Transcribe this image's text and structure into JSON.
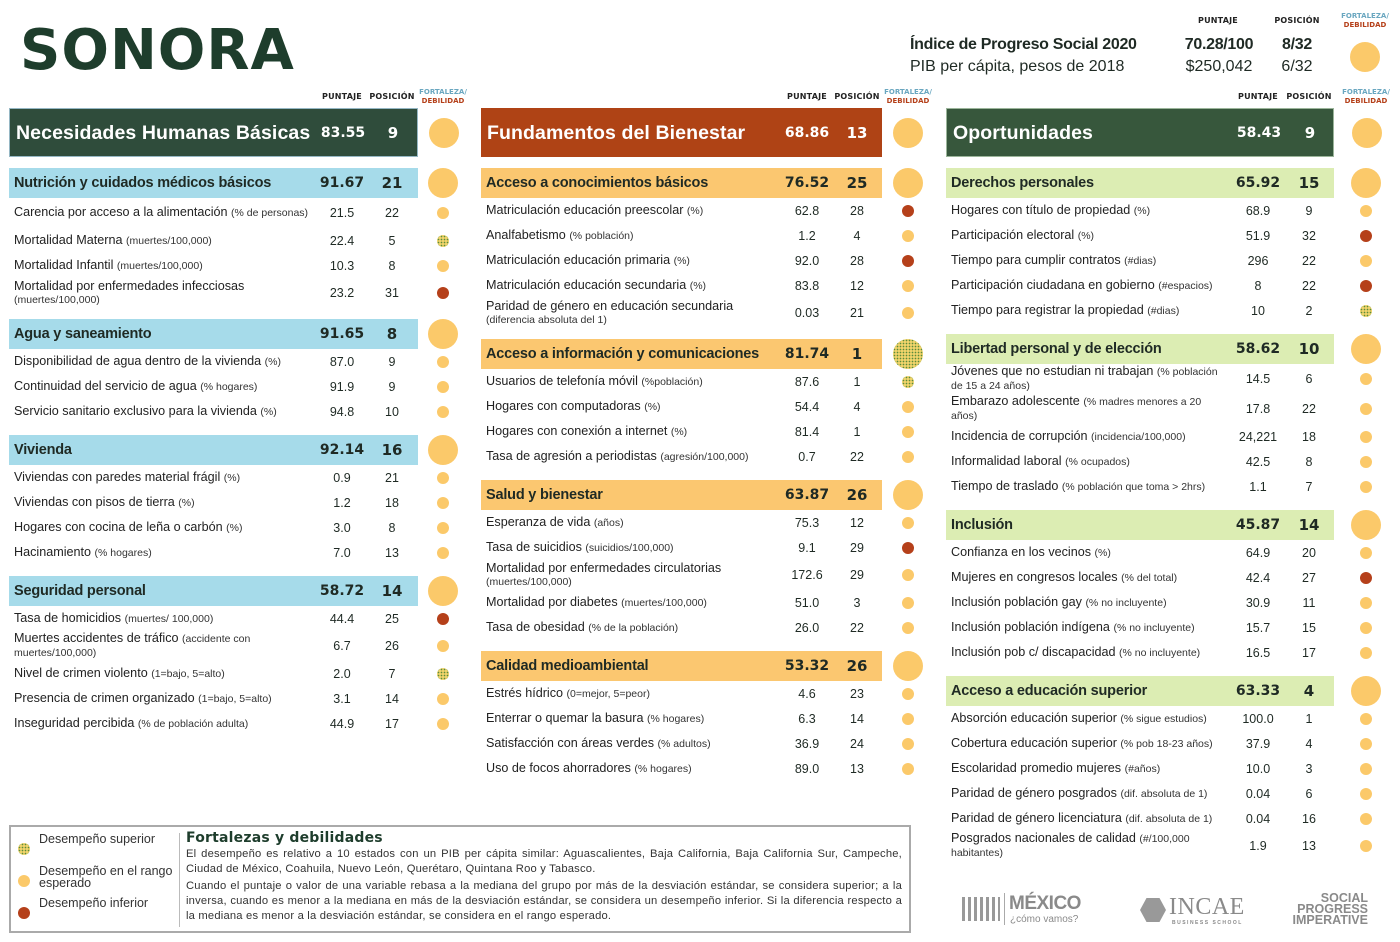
{
  "state": "SONORA",
  "column_headers": {
    "score": "PUNTAJE",
    "rank": "POSICIÓN",
    "strength": "FORTALEZA/",
    "weakness": "DEBILIDAD"
  },
  "colors": {
    "expected": "#fbc96a",
    "inferior": "#b5401a",
    "superior": "#5b8c3c",
    "pillar1": "#2f4c3b",
    "pillar2": "#af4315",
    "pillar3": "#37573c",
    "comp1": "#a6dbea",
    "comp2": "#fbc770",
    "comp3": "#dcedb3"
  },
  "summary": {
    "ips": {
      "label": "Índice de Progreso Social 2020",
      "score": "70.28/100",
      "rank": "8/32",
      "dot": "expected"
    },
    "gdp": {
      "label": "PIB per cápita, pesos de 2018",
      "score": "$250,042",
      "rank": "6/32"
    }
  },
  "pillars": [
    {
      "title": "Necesidades Humanas Básicas",
      "score": "83.55",
      "rank": "9",
      "dot": "expected",
      "components": [
        {
          "title": "Nutrición y cuidados médicos básicos",
          "score": "91.67",
          "rank": "21",
          "dot": "expected",
          "indicators": [
            {
              "label": "Carencia por acceso a la alimentación",
              "unit": "(% de personas)",
              "score": "21.5",
              "rank": "22",
              "dot": "expected",
              "two": true
            },
            {
              "label": "Mortalidad Materna",
              "unit": "(muertes/100,000)",
              "score": "22.4",
              "rank": "5",
              "dot": "superior"
            },
            {
              "label": "Mortalidad Infantil",
              "unit": "(muertes/100,000)",
              "score": "10.3",
              "rank": "8",
              "dot": "expected"
            },
            {
              "label": "Mortalidad por enfermedades infecciosas",
              "unit": "(muertes/100,000)",
              "score": "23.2",
              "rank": "31",
              "dot": "inferior",
              "two": true
            }
          ]
        },
        {
          "title": "Agua y saneamiento",
          "score": "91.65",
          "rank": "8",
          "dot": "expected",
          "indicators": [
            {
              "label": "Disponibilidad de agua dentro de la vivienda",
              "unit": "(%)",
              "score": "87.0",
              "rank": "9",
              "dot": "expected"
            },
            {
              "label": "Continuidad del servicio de agua",
              "unit": "(% hogares)",
              "score": "91.9",
              "rank": "9",
              "dot": "expected"
            },
            {
              "label": "Servicio sanitario exclusivo para la vivienda",
              "unit": "(%)",
              "score": "94.8",
              "rank": "10",
              "dot": "expected"
            }
          ]
        },
        {
          "title": "Vivienda",
          "score": "92.14",
          "rank": "16",
          "dot": "expected",
          "indicators": [
            {
              "label": "Viviendas con paredes material frágil",
              "unit": "(%)",
              "score": "0.9",
              "rank": "21",
              "dot": "expected"
            },
            {
              "label": "Viviendas con pisos de tierra",
              "unit": "(%)",
              "score": "1.2",
              "rank": "18",
              "dot": "expected"
            },
            {
              "label": "Hogares con cocina de leña o carbón",
              "unit": "(%)",
              "score": "3.0",
              "rank": "8",
              "dot": "expected"
            },
            {
              "label": "Hacinamiento",
              "unit": "(% hogares)",
              "score": "7.0",
              "rank": "13",
              "dot": "expected"
            }
          ]
        },
        {
          "title": "Seguridad personal",
          "score": "58.72",
          "rank": "14",
          "dot": "expected",
          "indicators": [
            {
              "label": "Tasa de homicidios",
              "unit": "(muertes/ 100,000)",
              "score": "44.4",
              "rank": "25",
              "dot": "inferior"
            },
            {
              "label": "Muertes accidentes de tráfico",
              "unit": "(accidente con muertes/100,000)",
              "score": "6.7",
              "rank": "26",
              "dot": "expected",
              "two": true
            },
            {
              "label": "Nivel de crimen violento",
              "unit": "(1=bajo, 5=alto)",
              "score": "2.0",
              "rank": "7",
              "dot": "superior"
            },
            {
              "label": "Presencia de crimen organizado",
              "unit": "(1=bajo, 5=alto)",
              "score": "3.1",
              "rank": "14",
              "dot": "expected"
            },
            {
              "label": "Inseguridad percibida",
              "unit": "(% de población adulta)",
              "score": "44.9",
              "rank": "17",
              "dot": "expected"
            }
          ]
        }
      ]
    },
    {
      "title": "Fundamentos del Bienestar",
      "score": "68.86",
      "rank": "13",
      "dot": "expected",
      "components": [
        {
          "title": "Acceso a conocimientos básicos",
          "score": "76.52",
          "rank": "25",
          "dot": "expected",
          "indicators": [
            {
              "label": "Matriculación educación preescolar",
              "unit": "(%)",
              "score": "62.8",
              "rank": "28",
              "dot": "inferior"
            },
            {
              "label": "Analfabetismo",
              "unit": "(% población)",
              "score": "1.2",
              "rank": "4",
              "dot": "expected"
            },
            {
              "label": "Matriculación educación primaria",
              "unit": "(%)",
              "score": "92.0",
              "rank": "28",
              "dot": "inferior"
            },
            {
              "label": "Matriculación educación secundaria",
              "unit": "(%)",
              "score": "83.8",
              "rank": "12",
              "dot": "expected"
            },
            {
              "label": "Paridad de género en educación secundaria",
              "unit": "(diferencia absoluta del 1)",
              "score": "0.03",
              "rank": "21",
              "dot": "expected",
              "two": true
            }
          ]
        },
        {
          "title": "Acceso a información y comunicaciones",
          "score": "81.74",
          "rank": "1",
          "dot": "superior",
          "indicators": [
            {
              "label": "Usuarios de telefonía móvil",
              "unit": "(%población)",
              "score": "87.6",
              "rank": "1",
              "dot": "superior"
            },
            {
              "label": "Hogares con computadoras",
              "unit": "(%)",
              "score": "54.4",
              "rank": "4",
              "dot": "expected"
            },
            {
              "label": "Hogares con conexión a internet",
              "unit": "(%)",
              "score": "81.4",
              "rank": "1",
              "dot": "expected"
            },
            {
              "label": "Tasa de agresión a periodistas",
              "unit": "(agresión/100,000)",
              "score": "0.7",
              "rank": "22",
              "dot": "expected"
            }
          ]
        },
        {
          "title": "Salud y bienestar",
          "score": "63.87",
          "rank": "26",
          "dot": "expected",
          "indicators": [
            {
              "label": "Esperanza de vida",
              "unit": "(años)",
              "score": "75.3",
              "rank": "12",
              "dot": "expected"
            },
            {
              "label": "Tasa de suicidios",
              "unit": "(suicidios/100,000)",
              "score": "9.1",
              "rank": "29",
              "dot": "inferior"
            },
            {
              "label": "Mortalidad por enfermedades circulatorias",
              "unit": "(muertes/100,000)",
              "score": "172.6",
              "rank": "29",
              "dot": "expected",
              "two": true
            },
            {
              "label": "Mortalidad por diabetes",
              "unit": "(muertes/100,000)",
              "score": "51.0",
              "rank": "3",
              "dot": "expected"
            },
            {
              "label": "Tasa de obesidad",
              "unit": "(% de la población)",
              "score": "26.0",
              "rank": "22",
              "dot": "expected"
            }
          ]
        },
        {
          "title": "Calidad medioambiental",
          "score": "53.32",
          "rank": "26",
          "dot": "expected",
          "indicators": [
            {
              "label": "Estrés hídrico",
              "unit": "(0=mejor, 5=peor)",
              "score": "4.6",
              "rank": "23",
              "dot": "expected"
            },
            {
              "label": "Enterrar o quemar la basura",
              "unit": "(% hogares)",
              "score": "6.3",
              "rank": "14",
              "dot": "expected"
            },
            {
              "label": "Satisfacción con áreas verdes",
              "unit": "(% adultos)",
              "score": "36.9",
              "rank": "24",
              "dot": "expected"
            },
            {
              "label": "Uso de focos ahorradores",
              "unit": "(% hogares)",
              "score": "89.0",
              "rank": "13",
              "dot": "expected"
            }
          ]
        }
      ]
    },
    {
      "title": "Oportunidades",
      "score": "58.43",
      "rank": "9",
      "dot": "expected",
      "components": [
        {
          "title": "Derechos personales",
          "score": "65.92",
          "rank": "15",
          "dot": "expected",
          "indicators": [
            {
              "label": "Hogares con título de propiedad",
              "unit": "(%)",
              "score": "68.9",
              "rank": "9",
              "dot": "expected"
            },
            {
              "label": "Participación electoral",
              "unit": "(%)",
              "score": "51.9",
              "rank": "32",
              "dot": "inferior"
            },
            {
              "label": "Tiempo para cumplir contratos",
              "unit": "(#dias)",
              "score": "296",
              "rank": "22",
              "dot": "expected"
            },
            {
              "label": "Participación ciudadana en gobierno",
              "unit": "(#espacios)",
              "score": "8",
              "rank": "22",
              "dot": "inferior"
            },
            {
              "label": "Tiempo para registrar la propiedad",
              "unit": "(#dias)",
              "score": "10",
              "rank": "2",
              "dot": "superior"
            }
          ]
        },
        {
          "title": "Libertad personal y de elección",
          "score": "58.62",
          "rank": "10",
          "dot": "expected",
          "indicators": [
            {
              "label": "Jóvenes que no estudian ni trabajan",
              "unit": "(% población de 15 a 24 años)",
              "score": "14.5",
              "rank": "6",
              "dot": "expected",
              "two": true
            },
            {
              "label": "Embarazo adolescente",
              "unit": "(% madres menores a 20 años)",
              "score": "17.8",
              "rank": "22",
              "dot": "expected",
              "two": true
            },
            {
              "label": "Incidencia de corrupción",
              "unit": "(incidencia/100,000)",
              "score": "24,221",
              "rank": "18",
              "dot": "expected"
            },
            {
              "label": "Informalidad laboral",
              "unit": "(% ocupados)",
              "score": "42.5",
              "rank": "8",
              "dot": "expected"
            },
            {
              "label": "Tiempo de traslado",
              "unit": "(% población que toma > 2hrs)",
              "score": "1.1",
              "rank": "7",
              "dot": "expected"
            }
          ]
        },
        {
          "title": "Inclusión",
          "score": "45.87",
          "rank": "14",
          "dot": "expected",
          "indicators": [
            {
              "label": "Confianza en los vecinos",
              "unit": "(%)",
              "score": "64.9",
              "rank": "20",
              "dot": "expected"
            },
            {
              "label": "Mujeres en congresos locales",
              "unit": "(% del total)",
              "score": "42.4",
              "rank": "27",
              "dot": "inferior"
            },
            {
              "label": "Inclusión población gay",
              "unit": "(% no incluyente)",
              "score": "30.9",
              "rank": "11",
              "dot": "expected"
            },
            {
              "label": "Inclusión población indígena",
              "unit": "(% no incluyente)",
              "score": "15.7",
              "rank": "15",
              "dot": "expected"
            },
            {
              "label": "Inclusión pob c/ discapacidad",
              "unit": "(% no incluyente)",
              "score": "16.5",
              "rank": "17",
              "dot": "expected"
            }
          ]
        },
        {
          "title": "Acceso a educación superior",
          "score": "63.33",
          "rank": "4",
          "dot": "expected",
          "indicators": [
            {
              "label": "Absorción educación superior",
              "unit": "(% sigue estudios)",
              "score": "100.0",
              "rank": "1",
              "dot": "expected"
            },
            {
              "label": "Cobertura educación superior",
              "unit": "(% pob 18-23 años)",
              "score": "37.9",
              "rank": "4",
              "dot": "expected"
            },
            {
              "label": "Escolaridad promedio mujeres",
              "unit": "(#años)",
              "score": "10.0",
              "rank": "3",
              "dot": "expected"
            },
            {
              "label": "Paridad de género posgrados",
              "unit": "(dif. absoluta de 1)",
              "score": "0.04",
              "rank": "6",
              "dot": "expected"
            },
            {
              "label": "Paridad de género licenciatura",
              "unit": "(dif. absoluta de 1)",
              "score": "0.04",
              "rank": "16",
              "dot": "expected"
            },
            {
              "label": "Posgrados nacionales de calidad",
              "unit": "(#/100,000 habitantes)",
              "score": "1.9",
              "rank": "13",
              "dot": "expected",
              "two": true
            }
          ]
        }
      ]
    }
  ],
  "legend": [
    {
      "label": "Desempeño superior",
      "dot": "superior"
    },
    {
      "label": "Desempeño en el rango esperado",
      "dot": "expected"
    },
    {
      "label": "Desempeño inferior",
      "dot": "inferior"
    }
  ],
  "notes": {
    "title": "Fortalezas y debilidades",
    "p1": "El desempeño es relativo a 10 estados con un PIB per cápita similar: Aguascalientes, Baja California, Baja California Sur, Campeche, Ciudad de México, Coahuila, Nuevo León, Querétaro, Quintana Roo y Tabasco.",
    "p2": "Cuando el puntaje o valor de una variable rebasa a la mediana del grupo por más de la desviación estándar, se considera superior; a la inversa, cuando es menor a la mediana en más de la desviación estándar, se considera un desempeño inferior. Si la diferencia respecto a la mediana es menor a la desviación estándar, se considera en el rango esperado."
  },
  "logos": {
    "mexico": "MÉXICO",
    "mexico_sub": "¿cómo vamos?",
    "incae": "INCAE",
    "incae_sub": "BUSINESS SCHOOL",
    "spi": "SOCIAL PROGRESS IMPERATIVE"
  }
}
